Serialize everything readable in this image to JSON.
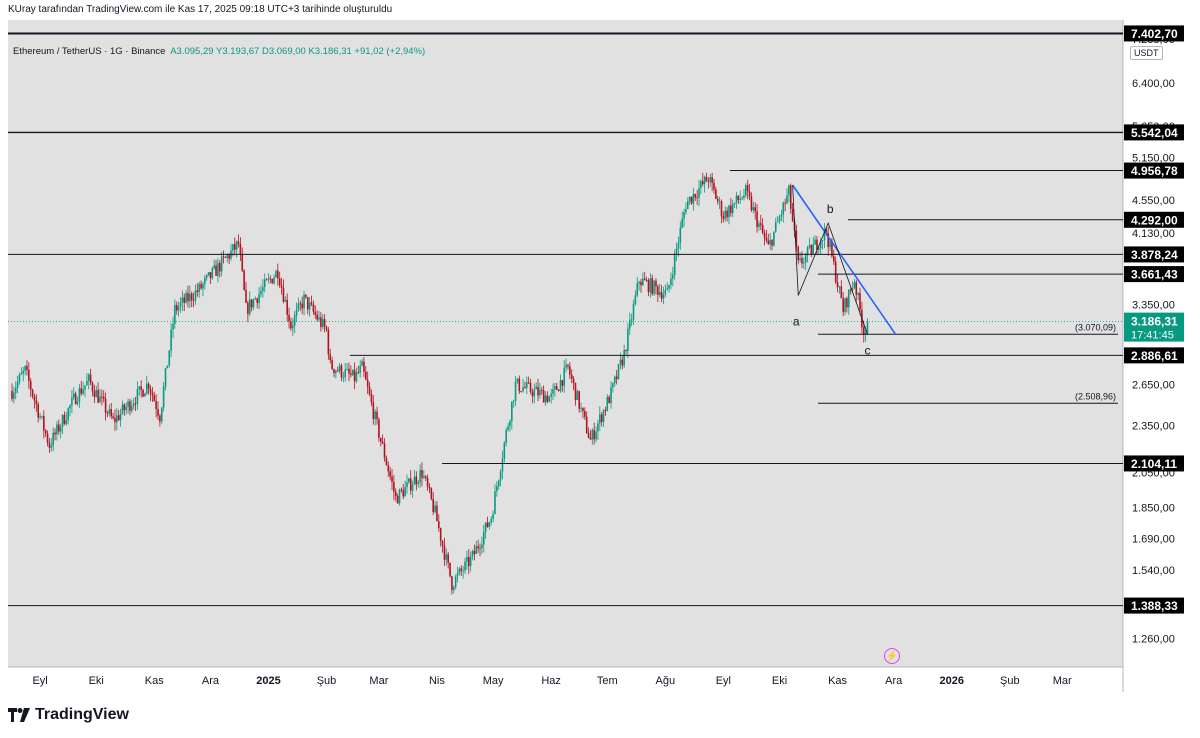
{
  "caption": "KUray tarafından TradingView.com ile Kas 17, 2025 09:18 UTC+3 tarihinde oluşturuldu",
  "symbol": {
    "name": "Ethereum / TetherUS · 1G · Binance",
    "open": "A3.095,29",
    "high": "Y3.193,67",
    "low": "D3.069,00",
    "close": "K3.186,31",
    "change": "+91,02 (+2,94%)"
  },
  "currency": "USDT",
  "branding": "TradingView",
  "colors": {
    "background": "#e1e1e1",
    "up": "#089981",
    "down": "#b2111f",
    "trendline": "#2962ff",
    "last_price": "#089981",
    "flash": "#e040fb"
  },
  "chart_data": {
    "type": "candlestick",
    "interval": "1D",
    "axis": "log",
    "ylim": [
      1160,
      7700
    ],
    "yticks": [
      "7.288,00",
      "6.400,00",
      "5.650,00",
      "5.150,00",
      "4.550,00",
      "4.130,00",
      "3.350,00",
      "2.650,00",
      "2.350,00",
      "2.050,00",
      "1.850,00",
      "1.690,00",
      "1.540,00",
      "1.260,00"
    ],
    "xlabels": [
      "Eyl",
      "Eki",
      "Kas",
      "Ara",
      "2025",
      "Şub",
      "Mar",
      "Nis",
      "May",
      "Haz",
      "Tem",
      "Ağu",
      "Eyl",
      "Eki",
      "Kas",
      "Ara",
      "2026",
      "Şub",
      "Mar"
    ],
    "levels": [
      {
        "value": 7402.7,
        "label": "7.402,70"
      },
      {
        "value": 5542.04,
        "label": "5.542,04"
      },
      {
        "value": 4956.78,
        "label": "4.956,78"
      },
      {
        "value": 4292.0,
        "label": "4.292,00"
      },
      {
        "value": 3878.24,
        "label": "3.878,24"
      },
      {
        "value": 3661.43,
        "label": "3.661,43"
      },
      {
        "value": 2886.61,
        "label": "2.886,61"
      },
      {
        "value": 2104.11,
        "label": "2.104,11"
      },
      {
        "value": 1388.33,
        "label": "1.388,33"
      }
    ],
    "last_price": {
      "value": 3186.31,
      "label": "3.186,31",
      "countdown": "17:41:45"
    },
    "fib_levels": [
      {
        "value": 3070.09,
        "label": "(3.070,09)"
      },
      {
        "value": 2508.96,
        "label": "(2.508,96)"
      }
    ],
    "wave_labels": [
      "a",
      "b",
      "c"
    ],
    "trendline": {
      "from": {
        "date": "2025-10-08",
        "price": 4750
      },
      "to": {
        "date": "2025-12-02",
        "price": 3070
      }
    },
    "wave_path": [
      {
        "date": "2025-10-08",
        "price": 4750
      },
      {
        "date": "2025-10-11",
        "price": 3440
      },
      {
        "date": "2025-10-27",
        "price": 4250
      },
      {
        "date": "2025-11-17",
        "price": 3070
      }
    ],
    "date_range": [
      "2024-08-17",
      "2025-11-17"
    ],
    "anchors": [
      {
        "date": "2024-08-17",
        "price": 2600
      },
      {
        "date": "2024-08-24",
        "price": 2760
      },
      {
        "date": "2024-09-06",
        "price": 2220
      },
      {
        "date": "2024-09-20",
        "price": 2560
      },
      {
        "date": "2024-09-27",
        "price": 2680
      },
      {
        "date": "2024-10-10",
        "price": 2380
      },
      {
        "date": "2024-10-29",
        "price": 2660
      },
      {
        "date": "2024-11-04",
        "price": 2420
      },
      {
        "date": "2024-11-12",
        "price": 3300
      },
      {
        "date": "2024-11-25",
        "price": 3500
      },
      {
        "date": "2024-12-16",
        "price": 4000
      },
      {
        "date": "2024-12-20",
        "price": 3300
      },
      {
        "date": "2025-01-06",
        "price": 3700
      },
      {
        "date": "2025-01-13",
        "price": 3150
      },
      {
        "date": "2025-01-20",
        "price": 3400
      },
      {
        "date": "2025-02-01",
        "price": 3100
      },
      {
        "date": "2025-02-03",
        "price": 2800
      },
      {
        "date": "2025-02-16",
        "price": 2700
      },
      {
        "date": "2025-02-20",
        "price": 2780
      },
      {
        "date": "2025-03-10",
        "price": 1900
      },
      {
        "date": "2025-03-24",
        "price": 2050
      },
      {
        "date": "2025-03-31",
        "price": 1820
      },
      {
        "date": "2025-04-09",
        "price": 1480
      },
      {
        "date": "2025-04-20",
        "price": 1600
      },
      {
        "date": "2025-04-30",
        "price": 1800
      },
      {
        "date": "2025-05-08",
        "price": 2300
      },
      {
        "date": "2025-05-13",
        "price": 2650
      },
      {
        "date": "2025-06-01",
        "price": 2550
      },
      {
        "date": "2025-06-10",
        "price": 2780
      },
      {
        "date": "2025-06-22",
        "price": 2250
      },
      {
        "date": "2025-07-03",
        "price": 2580
      },
      {
        "date": "2025-07-10",
        "price": 2900
      },
      {
        "date": "2025-07-18",
        "price": 3600
      },
      {
        "date": "2025-08-02",
        "price": 3450
      },
      {
        "date": "2025-08-12",
        "price": 4500
      },
      {
        "date": "2025-08-24",
        "price": 4850
      },
      {
        "date": "2025-09-01",
        "price": 4350
      },
      {
        "date": "2025-09-13",
        "price": 4650
      },
      {
        "date": "2025-09-25",
        "price": 3950
      },
      {
        "date": "2025-10-06",
        "price": 4650
      },
      {
        "date": "2025-10-11",
        "price": 3750
      },
      {
        "date": "2025-10-26",
        "price": 4150
      },
      {
        "date": "2025-11-04",
        "price": 3300
      },
      {
        "date": "2025-11-10",
        "price": 3600
      },
      {
        "date": "2025-11-15",
        "price": 3100
      },
      {
        "date": "2025-11-17",
        "price": 3186.31
      }
    ]
  }
}
